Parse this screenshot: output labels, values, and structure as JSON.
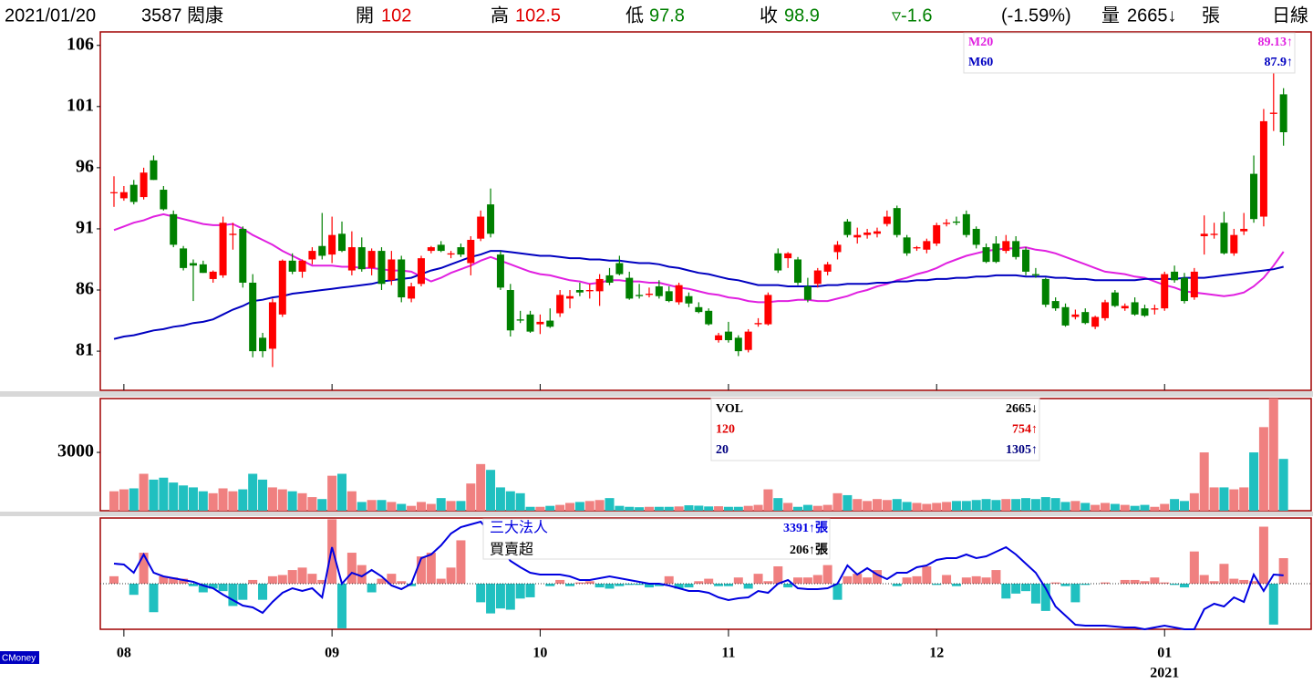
{
  "header": {
    "date": "2021/01/20",
    "stock": "3587 閎康",
    "open_label": "開",
    "open": 102,
    "high_label": "高",
    "high": 102.5,
    "low_label": "低",
    "low": 97.8,
    "close_label": "收",
    "close": 98.9,
    "change": "▿-1.6",
    "change_pct": "(-1.59%)",
    "volume_label": "量",
    "volume": "2665↓",
    "unit": "張",
    "period": "日線"
  },
  "watermark": "CMoney",
  "chart_data": [
    {
      "type": "candlestick",
      "categories": [
        null,
        "08",
        null,
        null,
        null,
        null,
        null,
        null,
        null,
        null,
        null,
        null,
        null,
        null,
        null,
        null,
        null,
        null,
        null,
        null,
        null,
        null,
        "09",
        null,
        null,
        null,
        null,
        null,
        null,
        null,
        null,
        null,
        null,
        null,
        null,
        null,
        null,
        null,
        null,
        null,
        null,
        null,
        null,
        "10",
        null,
        null,
        null,
        null,
        null,
        null,
        null,
        null,
        null,
        null,
        null,
        null,
        null,
        null,
        null,
        null,
        null,
        null,
        "11",
        null,
        null,
        null,
        null,
        null,
        null,
        null,
        null,
        null,
        null,
        null,
        null,
        null,
        null,
        null,
        null,
        null,
        null,
        null,
        null,
        "12",
        null,
        null,
        null,
        null,
        null,
        null,
        null,
        null,
        null,
        null,
        null,
        null,
        null,
        null,
        null,
        null,
        null,
        null,
        null,
        null,
        null,
        null,
        "01",
        null,
        null,
        null,
        null,
        null,
        null,
        null,
        null,
        null,
        null,
        null,
        null
      ],
      "year": "2021",
      "open": [
        94,
        93.5,
        94.6,
        93.6,
        96.6,
        94.2,
        92.2,
        89.4,
        88.2,
        88.1,
        86.9,
        87.2,
        90.5,
        91.0,
        86.6,
        82.1,
        81.2,
        84.0,
        88.4,
        87.5,
        88.5,
        89.6,
        88.9,
        90.6,
        87.6,
        89.5,
        87.8,
        89.2,
        86.8,
        88.5,
        85.3,
        86.5,
        89.2,
        89.7,
        88.9,
        89.5,
        88.2,
        90.2,
        93.0,
        88.9,
        86.0,
        83.6,
        84.0,
        83.2,
        83.5,
        84.1,
        85.3,
        86.0,
        85.9,
        85.9,
        87.2,
        88.2,
        87.0,
        85.6,
        85.6,
        86.3,
        85.9,
        85.0,
        85.5,
        84.6,
        84.3,
        81.9,
        82.6,
        82.1,
        81.1,
        83.2,
        83.2,
        89.0,
        88.6,
        88.5,
        86.3,
        86.5,
        87.5,
        89.1,
        91.6,
        90.3,
        90.5,
        90.6,
        91.4,
        92.7,
        90.3,
        89.4,
        89.3,
        89.8,
        91.4,
        91.6,
        92.2,
        91.0,
        89.5,
        89.8,
        89.2,
        90.0,
        89.3,
        87.3,
        86.9,
        85.1,
        84.6,
        83.8,
        84.2,
        83.0,
        83.7,
        85.8,
        84.5,
        85.0,
        84.5,
        84.4,
        84.5,
        87.5,
        87.0,
        85.4,
        90.4,
        90.5,
        91.5,
        89.0,
        90.8,
        95.5,
        92.0,
        100.4,
        102
      ],
      "high": [
        95.3,
        94.5,
        95,
        96,
        97,
        94.5,
        92.5,
        89.6,
        88.5,
        88.4,
        87.6,
        92,
        91.5,
        91.2,
        87.3,
        82.5,
        85.3,
        88.5,
        89.0,
        88.5,
        89.5,
        92.3,
        92,
        91.6,
        90.8,
        90.3,
        89.4,
        89.5,
        89.2,
        88.8,
        86.6,
        88.8,
        89.6,
        90,
        89.2,
        89.8,
        90.4,
        92.5,
        94.3,
        89.2,
        86.5,
        84.3,
        84.3,
        84.0,
        84.5,
        86,
        86,
        86.6,
        86.5,
        87.3,
        87.8,
        88.8,
        87.5,
        86.5,
        86.2,
        86.8,
        86.3,
        86.6,
        85.8,
        85.0,
        84.5,
        82.5,
        83.4,
        82.3,
        82.8,
        83.7,
        85.8,
        89.4,
        89.1,
        88.7,
        87.0,
        87.8,
        88.3,
        90.0,
        91.8,
        91.1,
        91,
        91.1,
        92.5,
        92.9,
        90.5,
        89.6,
        90.2,
        91.5,
        91.8,
        92.0,
        92.5,
        91.2,
        89.8,
        90.4,
        90.5,
        90.4,
        89.5,
        87.8,
        87.0,
        85.4,
        84.9,
        84.4,
        84.5,
        83.9,
        85.2,
        86.0,
        84.9,
        85.4,
        84.8,
        84.8,
        87.5,
        88,
        87.4,
        87.8,
        92.1,
        91.5,
        92.4,
        91.0,
        92.3,
        97.0,
        100.8,
        103.8,
        102.5
      ],
      "low": [
        92.8,
        93.3,
        93,
        93.4,
        95,
        92.5,
        89.5,
        87.6,
        85.1,
        87.4,
        86.6,
        87.0,
        89.3,
        86.2,
        80.5,
        80.5,
        79.7,
        83.8,
        87.3,
        87.0,
        88.1,
        88.5,
        88.2,
        89.1,
        87.2,
        87.5,
        87.2,
        86.0,
        86.4,
        85.0,
        85.0,
        86.3,
        89.0,
        89.1,
        88.6,
        88.7,
        87.2,
        90.0,
        90.3,
        86.0,
        82.2,
        83.3,
        82.5,
        82.4,
        82.9,
        83.8,
        84.5,
        85.5,
        85.3,
        84.7,
        86.4,
        87.2,
        85.2,
        85.3,
        85.4,
        85.3,
        85.0,
        84.8,
        84.6,
        84.1,
        83.1,
        81.7,
        81.7,
        80.6,
        80.9,
        83.0,
        83.1,
        87.4,
        87.8,
        86.4,
        85.0,
        86.2,
        87.2,
        88.5,
        90.3,
        89.8,
        90.2,
        90.3,
        91.2,
        90.3,
        88.8,
        89.2,
        89.0,
        89.6,
        91.2,
        91.3,
        90.3,
        89.4,
        88.2,
        88.2,
        89.0,
        88.5,
        87.2,
        87.0,
        84.6,
        84.3,
        83.0,
        83.6,
        83.2,
        82.8,
        83.5,
        84.6,
        84.3,
        83.9,
        83.8,
        84.0,
        84.3,
        86.6,
        84.9,
        85.2,
        88.9,
        90.2,
        88.9,
        88.8,
        90.5,
        91.5,
        91.2,
        99.0,
        97.8
      ],
      "close": [
        94,
        94.0,
        93.2,
        95.6,
        95.0,
        92.6,
        89.7,
        87.8,
        88.0,
        87.4,
        87.5,
        91.5,
        90.6,
        86.6,
        81.0,
        81.0,
        85.0,
        88.4,
        87.5,
        88.4,
        89.2,
        88.8,
        90.5,
        89.2,
        89.5,
        87.7,
        89.2,
        86.5,
        88.5,
        85.4,
        86.3,
        88.6,
        89.5,
        89.2,
        89.0,
        88.9,
        90.1,
        92.0,
        90.6,
        86.2,
        82.7,
        83.5,
        82.6,
        83.4,
        83.0,
        85.6,
        85.5,
        85.8,
        86.0,
        86.9,
        86.6,
        87.3,
        85.3,
        85.5,
        85.7,
        85.5,
        85.1,
        86.4,
        84.9,
        84.2,
        83.2,
        82.3,
        81.9,
        81.0,
        82.6,
        83.3,
        85.6,
        87.6,
        89.0,
        86.6,
        85.2,
        87.6,
        88.1,
        89.7,
        90.5,
        90.5,
        90.7,
        90.8,
        92.0,
        90.5,
        89.0,
        89.5,
        90.0,
        91.3,
        91.5,
        91.5,
        90.5,
        89.7,
        88.3,
        88.3,
        90.0,
        88.7,
        87.5,
        87.2,
        84.8,
        84.5,
        83.1,
        84.0,
        83.3,
        83.8,
        85.0,
        84.7,
        84.7,
        84.0,
        83.9,
        84.5,
        87.3,
        86.8,
        85.1,
        87.5,
        90.6,
        90.6,
        89.0,
        90.5,
        91.0,
        91.8,
        99.8,
        100.5,
        98.9
      ],
      "up_color": "#ff0000",
      "down_color": "#008000",
      "ylim": [
        77.8,
        107.1
      ],
      "yticks": [
        81,
        86,
        91,
        96,
        101,
        106
      ],
      "series": [
        {
          "name": "M20",
          "color": "#e020e0",
          "legend_value": "89.13↑",
          "values": [
            90.9,
            91.2,
            91.5,
            91.7,
            92.0,
            92.2,
            92.0,
            91.8,
            91.6,
            91.4,
            91.3,
            91.3,
            91.4,
            91.0,
            90.5,
            90.1,
            89.7,
            89.2,
            88.8,
            88.4,
            88.0,
            88.0,
            88.0,
            87.9,
            87.9,
            87.8,
            87.8,
            87.7,
            87.6,
            87.6,
            87.5,
            87.1,
            86.7,
            87.0,
            87.4,
            87.7,
            88.0,
            88.4,
            88.7,
            88.4,
            88.1,
            87.8,
            87.5,
            87.3,
            87.2,
            87.0,
            86.8,
            86.7,
            86.5,
            86.6,
            86.8,
            86.8,
            86.7,
            86.7,
            86.6,
            86.6,
            86.4,
            86.2,
            86.1,
            85.9,
            85.7,
            85.6,
            85.4,
            85.3,
            85.1,
            85.0,
            85.0,
            85.1,
            85.1,
            85.2,
            85.2,
            85.1,
            85.1,
            85.3,
            85.5,
            85.8,
            86.0,
            86.3,
            86.5,
            86.8,
            87.0,
            87.3,
            87.5,
            87.8,
            88.2,
            88.5,
            88.8,
            89.0,
            89.2,
            89.3,
            89.4,
            89.4,
            89.5,
            89.3,
            89.2,
            89.0,
            88.7,
            88.4,
            88.1,
            87.8,
            87.5,
            87.4,
            87.3,
            87.1,
            87.0,
            86.7,
            86.4,
            86.2,
            85.9,
            85.8,
            85.7,
            85.6,
            85.5,
            85.6,
            85.8,
            86.3,
            87.0,
            88.0,
            89.13
          ]
        },
        {
          "name": "M60",
          "color": "#0000c0",
          "legend_value": "87.9↑",
          "values": [
            82.0,
            82.2,
            82.3,
            82.5,
            82.7,
            82.8,
            83.0,
            83.1,
            83.3,
            83.4,
            83.6,
            84.0,
            84.4,
            84.7,
            85.1,
            85.2,
            85.4,
            85.5,
            85.7,
            85.8,
            85.9,
            86.0,
            86.1,
            86.2,
            86.3,
            86.4,
            86.5,
            86.7,
            86.8,
            86.9,
            87.0,
            87.3,
            87.6,
            87.8,
            88.1,
            88.4,
            88.7,
            88.9,
            89.2,
            89.2,
            89.1,
            89.0,
            88.9,
            88.8,
            88.8,
            88.7,
            88.6,
            88.6,
            88.5,
            88.5,
            88.4,
            88.4,
            88.3,
            88.2,
            88.2,
            88.1,
            87.9,
            87.8,
            87.6,
            87.4,
            87.3,
            87.1,
            86.9,
            86.8,
            86.6,
            86.4,
            86.4,
            86.4,
            86.3,
            86.3,
            86.3,
            86.3,
            86.4,
            86.4,
            86.5,
            86.5,
            86.5,
            86.6,
            86.6,
            86.7,
            86.7,
            86.8,
            86.8,
            86.9,
            86.9,
            87.0,
            87.0,
            87.1,
            87.1,
            87.2,
            87.2,
            87.2,
            87.1,
            87.1,
            87.1,
            87.0,
            87.0,
            86.9,
            86.9,
            86.8,
            86.8,
            86.8,
            86.8,
            86.8,
            86.9,
            86.9,
            86.9,
            86.9,
            87.0,
            87.0,
            87.0,
            87.1,
            87.2,
            87.3,
            87.4,
            87.5,
            87.6,
            87.7,
            87.9
          ]
        }
      ]
    },
    {
      "type": "bar",
      "values": [
        1000,
        1100,
        1150,
        1900,
        1600,
        1700,
        1450,
        1300,
        1200,
        1000,
        900,
        1150,
        1000,
        1100,
        1900,
        1600,
        1200,
        1100,
        1000,
        900,
        700,
        600,
        1800,
        1900,
        1000,
        450,
        550,
        550,
        450,
        350,
        250,
        450,
        350,
        650,
        500,
        500,
        1400,
        2400,
        2100,
        1200,
        1000,
        900,
        200,
        200,
        250,
        300,
        400,
        450,
        500,
        550,
        650,
        250,
        200,
        180,
        200,
        200,
        200,
        220,
        280,
        260,
        220,
        230,
        200,
        200,
        250,
        300,
        1100,
        650,
        400,
        200,
        300,
        250,
        300,
        900,
        800,
        600,
        500,
        600,
        550,
        600,
        450,
        400,
        350,
        400,
        450,
        500,
        500,
        550,
        600,
        550,
        600,
        600,
        650,
        600,
        700,
        650,
        450,
        500,
        400,
        300,
        400,
        350,
        300,
        250,
        300,
        200,
        350,
        600,
        500,
        900,
        3000,
        1200,
        1200,
        1100,
        1200,
        3000,
        4300,
        5770,
        2665
      ],
      "up_color": "#f08080",
      "down_color": "#20c0c0",
      "ylim": [
        0,
        5770
      ],
      "yticks": [
        3000
      ],
      "legend": [
        {
          "name": "VOL",
          "value": "2665↓",
          "color": "#000000"
        },
        {
          "name": "120",
          "value": "754↑",
          "color": "#e00000"
        },
        {
          "name": "20",
          "value": "1305↑",
          "color": "#000080"
        }
      ]
    },
    {
      "type": "bar_line",
      "values": [
        60,
        0,
        -90,
        250,
        -230,
        60,
        50,
        40,
        -20,
        -70,
        -40,
        -60,
        -180,
        -130,
        30,
        -130,
        60,
        70,
        110,
        130,
        80,
        30,
        520,
        -360,
        250,
        150,
        -70,
        40,
        80,
        20,
        -20,
        220,
        250,
        40,
        130,
        350,
        0,
        -150,
        -240,
        -200,
        -210,
        -120,
        -110,
        0,
        -20,
        30,
        -20,
        10,
        20,
        -30,
        -40,
        -20,
        -10,
        -10,
        -30,
        -20,
        60,
        -40,
        -30,
        20,
        40,
        -20,
        -20,
        50,
        -40,
        80,
        20,
        140,
        -30,
        50,
        50,
        70,
        150,
        -130,
        60,
        80,
        50,
        110,
        0,
        -20,
        50,
        60,
        140,
        -10,
        70,
        -20,
        50,
        60,
        50,
        110,
        -120,
        -80,
        -60,
        -160,
        -220,
        10,
        -20,
        -150,
        -10,
        0,
        10,
        0,
        30,
        30,
        20,
        50,
        10,
        -10,
        -30,
        260,
        70,
        20,
        160,
        40,
        30,
        20,
        460,
        -330,
        206
      ],
      "bar_name": "買賣超",
      "bar_legend_value": "206↑張",
      "pos_color": "#f08080",
      "neg_color": "#20c0c0",
      "ylim": [
        -368,
        530
      ],
      "y2lim": [
        0,
        7000
      ],
      "series": [
        {
          "name": "三大法人",
          "color": "#0000e0",
          "axis": "y2",
          "legend_value": "3391↑張",
          "values": [
            4133,
            4075,
            3559,
            4707,
            3559,
            3329,
            3214,
            3100,
            2985,
            2755,
            2583,
            2181,
            1837,
            1492,
            1378,
            1033,
            1722,
            2296,
            2583,
            2411,
            2583,
            2009,
            5166,
            2870,
            3559,
            3329,
            3731,
            3329,
            2755,
            2526,
            2870,
            4477,
            4707,
            5281,
            6027,
            6429,
            6601,
            6773,
            6027,
            5166,
            4305,
            3903,
            3559,
            3444,
            3444,
            3444,
            3329,
            3100,
            3100,
            3214,
            3329,
            3214,
            3100,
            2985,
            2870,
            2870,
            2755,
            2583,
            2411,
            2411,
            2296,
            2009,
            1837,
            1952,
            2009,
            2411,
            2296,
            2870,
            3100,
            2583,
            2526,
            2526,
            2583,
            2870,
            4018,
            3444,
            3846,
            3444,
            3157,
            3559,
            3559,
            3903,
            4018,
            4362,
            4477,
            4477,
            4707,
            4477,
            4592,
            4879,
            5166,
            4707,
            4133,
            3559,
            2583,
            1435,
            861,
            287,
            230,
            230,
            230,
            172,
            115,
            115,
            0,
            115,
            230,
            115,
            0,
            0,
            1263,
            1607,
            1435,
            2009,
            1722,
            3444,
            2411,
            3444,
            3391
          ]
        }
      ]
    }
  ]
}
